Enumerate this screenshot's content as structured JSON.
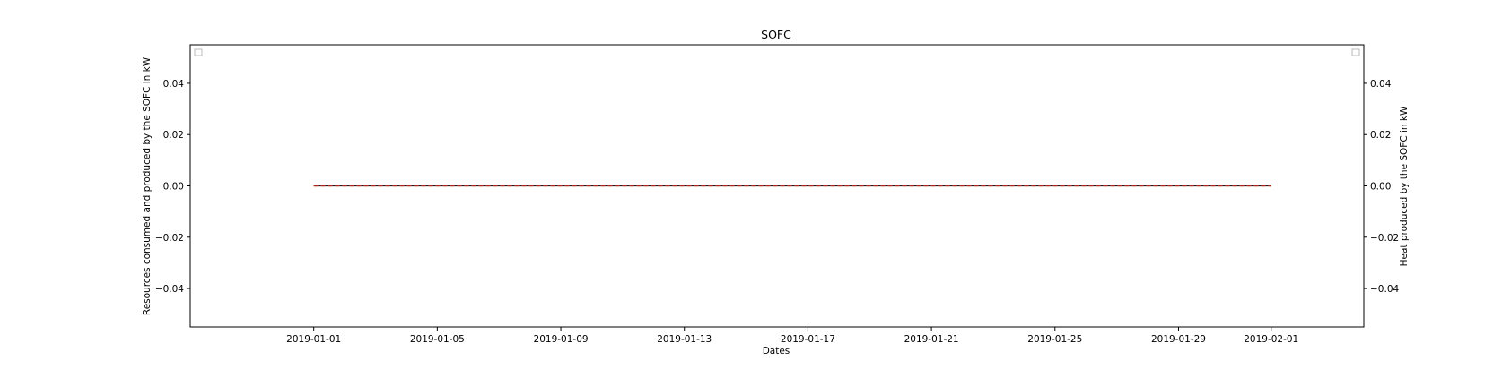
{
  "chart_data": {
    "type": "line",
    "title": "SOFC",
    "xlabel": "Dates",
    "ylabel_left": "Resources consumed and produced by the SOFC in kW",
    "ylabel_right": "Heat produced by the SOFC in kW",
    "x_range": [
      "2018-12-28",
      "2019-02-04"
    ],
    "x_ticks": [
      "2019-01-01",
      "2019-01-05",
      "2019-01-09",
      "2019-01-13",
      "2019-01-17",
      "2019-01-21",
      "2019-01-25",
      "2019-01-29",
      "2019-02-01"
    ],
    "ylim_left": [
      -0.055,
      0.055
    ],
    "ylim_right": [
      -0.055,
      0.055
    ],
    "y_ticks_left": [
      "0.04",
      "0.02",
      "0.00",
      "−0.02",
      "−0.04"
    ],
    "y_ticks_right": [
      "0.04",
      "0.02",
      "0.00",
      "−0.02",
      "−0.04"
    ],
    "grid": false,
    "legend_left": {
      "placement": "upper-left",
      "entries": []
    },
    "legend_right": {
      "placement": "upper-right",
      "entries": []
    },
    "series": [
      {
        "axis": "left",
        "style": "solid",
        "color": "#1f1f1f",
        "x_start": "2019-01-01",
        "x_end": "2019-02-01",
        "value": 0.0
      },
      {
        "axis": "left",
        "style": "dashed",
        "color": "#ff7f0e",
        "x_start": "2019-01-01",
        "x_end": "2019-02-01",
        "value": 0.0
      },
      {
        "axis": "right",
        "style": "dashed",
        "color": "#b22222",
        "x_start": "2019-01-01",
        "x_end": "2019-02-01",
        "value": 0.0
      }
    ]
  }
}
